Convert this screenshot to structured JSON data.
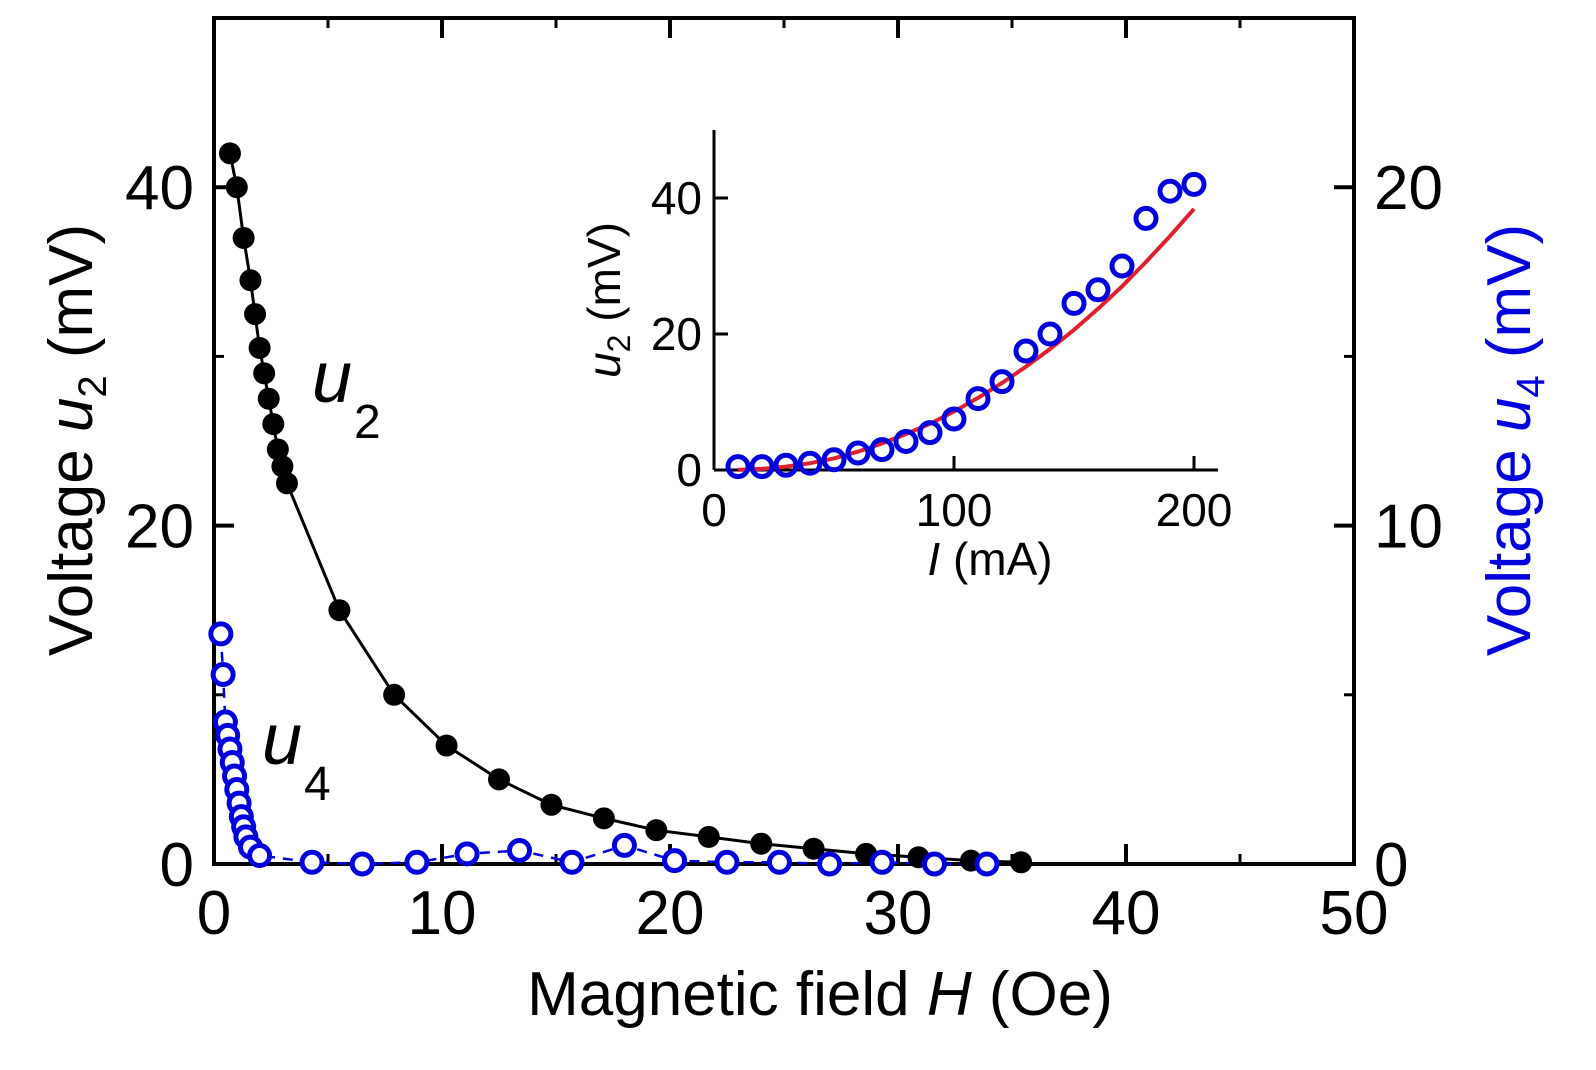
{
  "chart_data": [
    {
      "type": "scatter",
      "title": "",
      "xlabel": {
        "prefix": "Magnetic field ",
        "var": "H",
        "suffix": " (Oe)"
      },
      "ylabel_left": {
        "prefix": "Voltage ",
        "var": "u",
        "sub": "2",
        "suffix": " (mV)"
      },
      "ylabel_right": {
        "prefix": "Voltage ",
        "var": "u",
        "sub": "4",
        "suffix": " (mV)"
      },
      "xlim": [
        0,
        50
      ],
      "ylim_left": [
        0,
        50
      ],
      "ylim_right": [
        0,
        25
      ],
      "xticks": [
        "0",
        "10",
        "20",
        "30",
        "40",
        "50"
      ],
      "yticks_left": [
        "0",
        "20",
        "40"
      ],
      "yticks_right": [
        "0",
        "10",
        "20"
      ],
      "series": [
        {
          "label_var": "u",
          "label_sub": "2",
          "axis": "left",
          "color": "#000000",
          "marker": "filled-circle",
          "x": [
            0.7,
            1.0,
            1.3,
            1.6,
            1.8,
            2.0,
            2.2,
            2.4,
            2.6,
            2.8,
            3.0,
            3.2,
            5.5,
            7.9,
            10.2,
            12.5,
            14.8,
            17.1,
            19.4,
            21.7,
            24.0,
            26.3,
            28.6,
            30.9,
            33.2,
            35.4
          ],
          "y": [
            42.0,
            40.0,
            37.0,
            34.5,
            32.5,
            30.5,
            29.0,
            27.5,
            26.0,
            24.5,
            23.5,
            22.5,
            15.0,
            10.0,
            7.0,
            5.0,
            3.5,
            2.7,
            2.0,
            1.6,
            1.2,
            0.9,
            0.6,
            0.4,
            0.2,
            0.1
          ]
        },
        {
          "label_var": "u",
          "label_sub": "4",
          "axis": "right",
          "color": "#0000dd",
          "marker": "open-circle",
          "x": [
            0.3,
            0.4,
            0.5,
            0.6,
            0.7,
            0.8,
            0.9,
            1.0,
            1.1,
            1.2,
            1.3,
            1.4,
            1.6,
            2.0,
            4.3,
            6.5,
            8.9,
            11.1,
            13.4,
            15.7,
            18.0,
            20.2,
            22.5,
            24.8,
            27.0,
            29.3,
            31.6,
            33.9
          ],
          "y": [
            6.8,
            5.6,
            4.2,
            3.8,
            3.4,
            3.0,
            2.6,
            2.2,
            1.8,
            1.4,
            1.1,
            0.8,
            0.5,
            0.25,
            0.05,
            0.0,
            0.05,
            0.3,
            0.4,
            0.05,
            0.55,
            0.1,
            0.05,
            0.05,
            0.0,
            0.05,
            0.0,
            0.0
          ]
        }
      ]
    },
    {
      "type": "scatter",
      "inset": true,
      "title": "",
      "xlabel": {
        "var": "I",
        "suffix": " (mA)"
      },
      "ylabel": {
        "var": "u",
        "sub": "2",
        "suffix": " (mV)"
      },
      "xlim": [
        0,
        210
      ],
      "ylim": [
        0,
        50
      ],
      "xticks": [
        "0",
        "100",
        "200"
      ],
      "yticks": [
        "0",
        "20",
        "40"
      ],
      "series": [
        {
          "marker": "open-circle",
          "color": "#0000dd",
          "x": [
            10,
            20,
            30,
            40,
            50,
            60,
            70,
            80,
            90,
            100,
            110,
            120,
            130,
            140,
            150,
            160,
            170,
            180,
            190,
            200
          ],
          "y": [
            0.5,
            0.5,
            0.7,
            1.0,
            1.5,
            2.5,
            3.0,
            4.2,
            5.5,
            7.5,
            10.5,
            13.0,
            17.5,
            20.0,
            24.5,
            26.5,
            30.0,
            37.0,
            41.0,
            42.0
          ]
        },
        {
          "marker": "line",
          "color": "#e0202e",
          "fit": "power",
          "x": [
            10,
            20,
            30,
            40,
            50,
            60,
            70,
            80,
            90,
            100,
            110,
            120,
            130,
            140,
            150,
            160,
            170,
            180,
            190,
            200
          ],
          "y": [
            0.02,
            0.16,
            0.5,
            1.0,
            1.7,
            2.7,
            3.9,
            5.3,
            6.8,
            8.6,
            10.6,
            12.8,
            15.2,
            17.8,
            20.6,
            23.7,
            27.0,
            30.6,
            34.4,
            38.4
          ]
        }
      ]
    }
  ]
}
